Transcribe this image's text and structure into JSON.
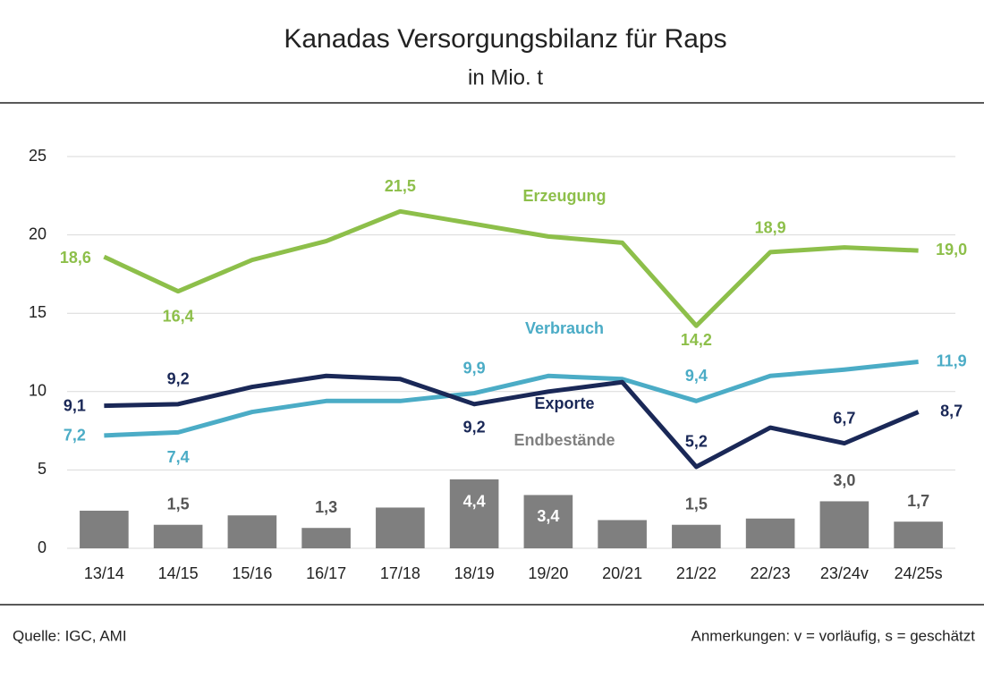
{
  "chart_data": {
    "type": "line",
    "title": "Kanadas Versorgungsbilanz für Raps",
    "subtitle": "in Mio. t",
    "source": "Quelle: IGC, AMI",
    "note": "Anmerkungen: v = vorläufig, s = geschätzt",
    "categories": [
      "13/14",
      "14/15",
      "15/16",
      "16/17",
      "17/18",
      "18/19",
      "19/20",
      "20/21",
      "21/22",
      "22/23",
      "23/24v",
      "24/25s"
    ],
    "ylim": [
      0,
      25
    ],
    "yticks": [
      0,
      5,
      10,
      15,
      20,
      25
    ],
    "grid": true,
    "series": [
      {
        "name": "Endbestände",
        "type": "bar",
        "color": "#7f7f7f",
        "values": [
          2.4,
          1.5,
          2.1,
          1.3,
          2.6,
          4.4,
          3.4,
          1.8,
          1.5,
          1.9,
          3.0,
          1.7
        ],
        "value_labels": [
          null,
          "1,5",
          null,
          "1,3",
          null,
          "4,4",
          "3,4",
          null,
          "1,5",
          null,
          "3,0",
          "1,7"
        ]
      },
      {
        "name": "Erzeugung",
        "type": "line",
        "color": "#8dbf4a",
        "values": [
          18.6,
          16.4,
          18.4,
          19.6,
          21.5,
          20.7,
          19.9,
          19.5,
          14.2,
          18.9,
          19.2,
          19.0
        ],
        "value_labels": [
          "18,6",
          "16,4",
          null,
          null,
          "21,5",
          null,
          null,
          null,
          "14,2",
          "18,9",
          null,
          "19,0"
        ]
      },
      {
        "name": "Verbrauch",
        "type": "line",
        "color": "#4bacc6",
        "values": [
          7.2,
          7.4,
          8.7,
          9.4,
          9.4,
          9.9,
          11.0,
          10.8,
          9.4,
          11.0,
          11.4,
          11.9
        ],
        "value_labels": [
          "7,2",
          "7,4",
          null,
          null,
          null,
          "9,9",
          null,
          null,
          "9,4",
          null,
          null,
          "11,9"
        ]
      },
      {
        "name": "Exporte",
        "type": "line",
        "color": "#1a2857",
        "values": [
          9.1,
          9.2,
          10.3,
          11.0,
          10.8,
          9.2,
          10.0,
          10.6,
          5.2,
          7.7,
          6.7,
          8.7
        ],
        "value_labels": [
          "9,1",
          "9,2",
          null,
          null,
          null,
          "9,2",
          null,
          null,
          "5,2",
          null,
          "6,7",
          "8,7"
        ]
      }
    ]
  }
}
